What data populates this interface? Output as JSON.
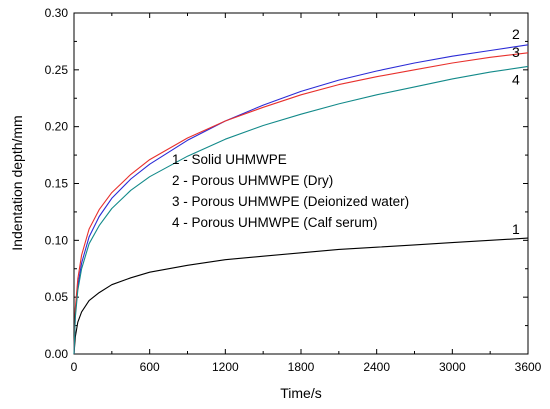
{
  "chart_data": {
    "type": "line",
    "xlabel": "Time/s",
    "ylabel": "Indentation depth/mm",
    "xlim": [
      0,
      3600
    ],
    "ylim": [
      0.0,
      0.3
    ],
    "xticks": [
      "0",
      "600",
      "1200",
      "1800",
      "2400",
      "3000",
      "3600"
    ],
    "yticks": [
      "0.00",
      "0.05",
      "0.10",
      "0.15",
      "0.20",
      "0.25",
      "0.30"
    ],
    "grid": false,
    "legend_entries": [
      "1 - Solid UHMWPE",
      "2 - Porous UHMWPE (Dry)",
      "3 - Porous UHMWPE (Deionized water)",
      "4 - Porous UHMWPE (Calf serum)"
    ],
    "series": [
      {
        "name": "1",
        "color": "#000000",
        "x": [
          0,
          10,
          30,
          60,
          120,
          200,
          300,
          450,
          600,
          900,
          1200,
          1500,
          1800,
          2100,
          2400,
          2700,
          3000,
          3300,
          3600
        ],
        "y": [
          0.0,
          0.015,
          0.028,
          0.037,
          0.047,
          0.054,
          0.061,
          0.067,
          0.072,
          0.078,
          0.083,
          0.086,
          0.089,
          0.092,
          0.094,
          0.096,
          0.098,
          0.1,
          0.102
        ]
      },
      {
        "name": "2",
        "color": "#2b2bd6",
        "x": [
          0,
          10,
          30,
          60,
          120,
          200,
          300,
          450,
          600,
          900,
          1200,
          1500,
          1800,
          2100,
          2400,
          2700,
          3000,
          3300,
          3600
        ],
        "y": [
          0.0,
          0.035,
          0.06,
          0.08,
          0.103,
          0.121,
          0.137,
          0.154,
          0.167,
          0.188,
          0.205,
          0.219,
          0.231,
          0.241,
          0.249,
          0.256,
          0.262,
          0.267,
          0.272
        ]
      },
      {
        "name": "3",
        "color": "#e8302c",
        "x": [
          0,
          10,
          30,
          60,
          120,
          200,
          300,
          450,
          600,
          900,
          1200,
          1500,
          1800,
          2100,
          2400,
          2700,
          3000,
          3300,
          3600
        ],
        "y": [
          0.0,
          0.04,
          0.066,
          0.087,
          0.11,
          0.127,
          0.142,
          0.158,
          0.171,
          0.19,
          0.205,
          0.217,
          0.228,
          0.237,
          0.244,
          0.25,
          0.256,
          0.261,
          0.265
        ]
      },
      {
        "name": "4",
        "color": "#138a8a",
        "x": [
          0,
          10,
          30,
          60,
          120,
          200,
          300,
          450,
          600,
          900,
          1200,
          1500,
          1800,
          2100,
          2400,
          2700,
          3000,
          3300,
          3600
        ],
        "y": [
          0.0,
          0.032,
          0.056,
          0.075,
          0.097,
          0.113,
          0.128,
          0.144,
          0.156,
          0.174,
          0.189,
          0.201,
          0.211,
          0.22,
          0.228,
          0.235,
          0.242,
          0.248,
          0.253
        ]
      }
    ],
    "curve_labels": [
      "1",
      "2",
      "3",
      "4"
    ]
  }
}
